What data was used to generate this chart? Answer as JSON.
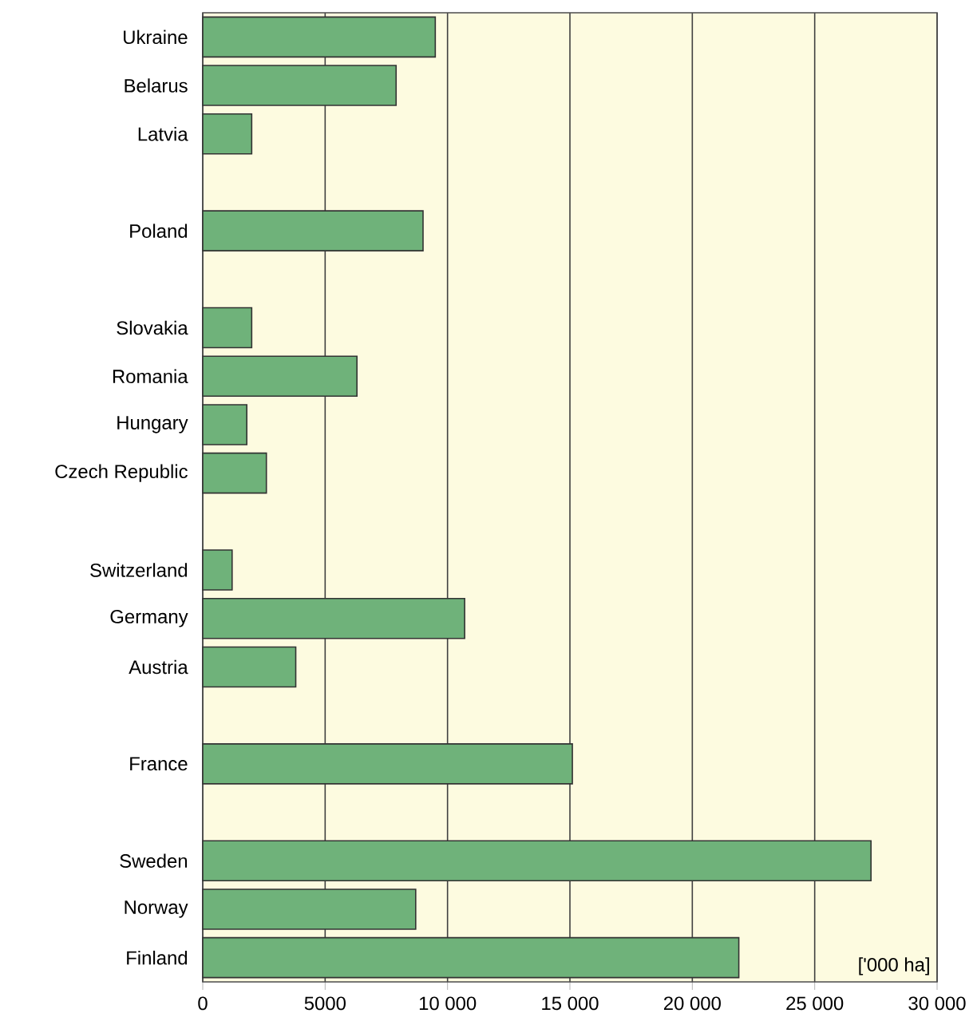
{
  "chart_data": {
    "type": "bar",
    "orientation": "horizontal",
    "categories": [
      "Ukraine",
      "Belarus",
      "Latvia",
      null,
      "Poland",
      null,
      "Slovakia",
      "Romania",
      "Hungary",
      "Czech Republic",
      null,
      "Switzerland",
      "Germany",
      "Austria",
      null,
      "France",
      null,
      "Sweden",
      "Norway",
      "Finland"
    ],
    "values": [
      9500,
      7900,
      2000,
      null,
      9000,
      null,
      2000,
      6300,
      1800,
      2600,
      null,
      1200,
      10700,
      3800,
      null,
      15100,
      null,
      27300,
      8700,
      21900
    ],
    "color": "#6fb27a",
    "xlim": [
      0,
      30000
    ],
    "xticks": [
      0,
      5000,
      {
        "value": 10000,
        "label": "10 000"
      },
      {
        "value": 15000,
        "label": "15 000"
      },
      {
        "value": 20000,
        "label": "20 000"
      },
      {
        "value": 25000,
        "label": "25 000"
      },
      {
        "value": 30000,
        "label": "30 000"
      }
    ],
    "grid": "x",
    "annotations": [
      "['000 ha]"
    ]
  }
}
